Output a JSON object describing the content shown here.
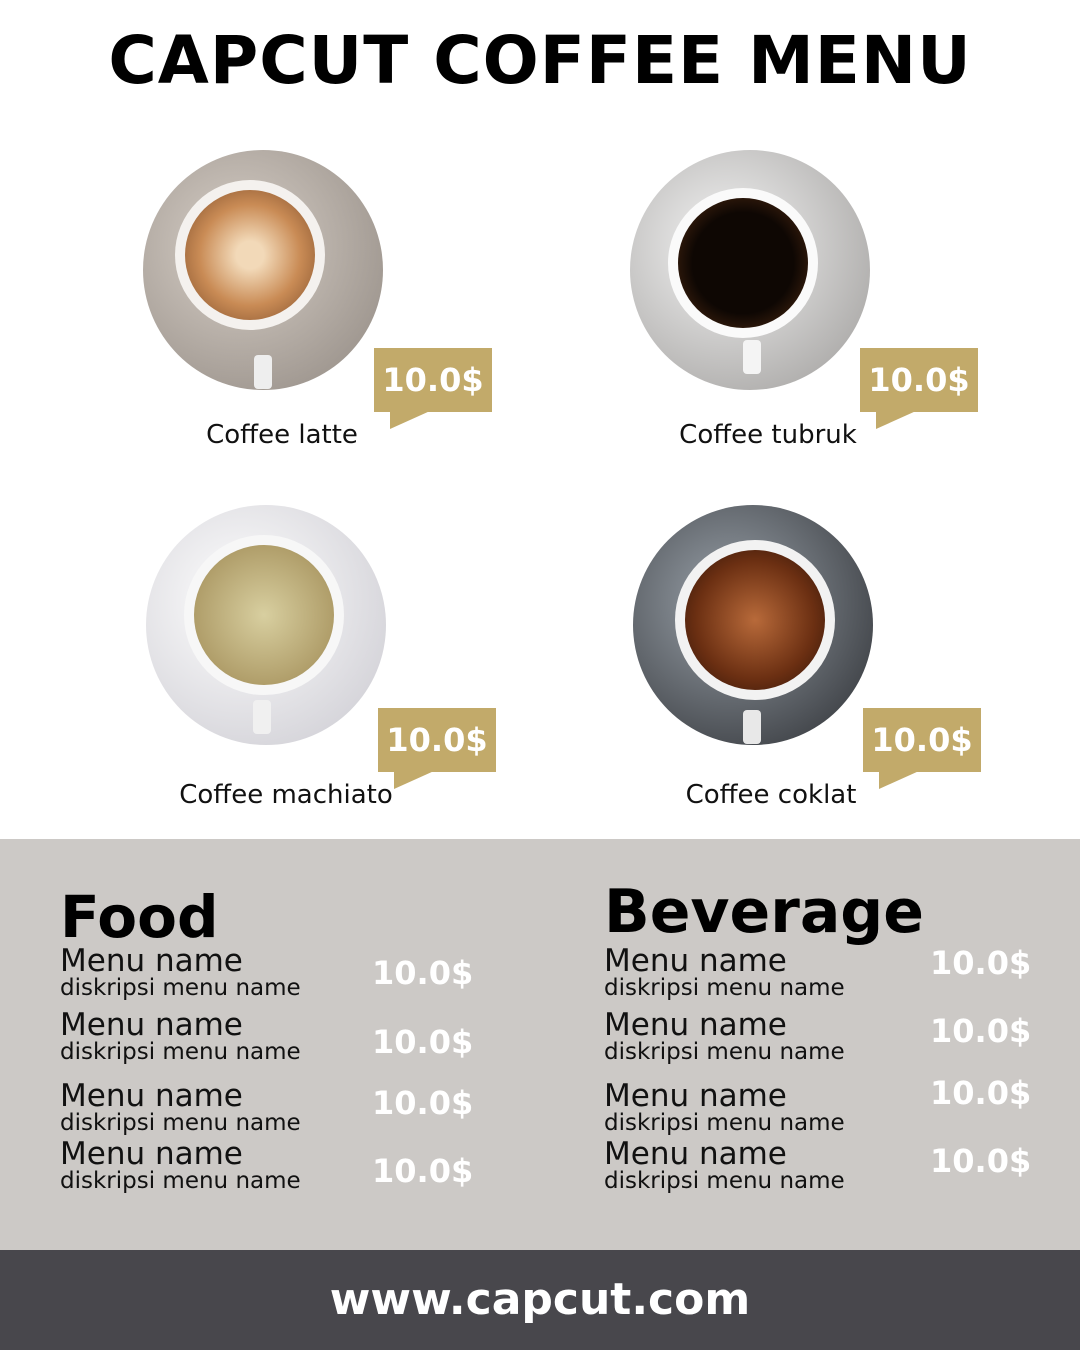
{
  "title": "CAPCUT COFFEE MENU",
  "featured": [
    {
      "name": "Coffee latte",
      "price": "10.0$"
    },
    {
      "name": "Coffee tubruk",
      "price": "10.0$"
    },
    {
      "name": "Coffee machiato",
      "price": "10.0$"
    },
    {
      "name": "Coffee coklat",
      "price": "10.0$"
    }
  ],
  "colors": {
    "accent": "#c2aa6a",
    "band": "#ccc9c6",
    "footer": "#48474c"
  },
  "food": {
    "title": "Food",
    "items": [
      {
        "name": "Menu name",
        "desc": "diskripsi menu name",
        "price": "10.0$"
      },
      {
        "name": "Menu name",
        "desc": "diskripsi menu name",
        "price": "10.0$"
      },
      {
        "name": "Menu name",
        "desc": "diskripsi menu name",
        "price": "10.0$"
      },
      {
        "name": "Menu name",
        "desc": "diskripsi menu name",
        "price": "10.0$"
      }
    ]
  },
  "beverage": {
    "title": "Beverage",
    "items": [
      {
        "name": "Menu name",
        "desc": "diskripsi menu name",
        "price": "10.0$"
      },
      {
        "name": "Menu name",
        "desc": "diskripsi menu name",
        "price": "10.0$"
      },
      {
        "name": "Menu name",
        "desc": "diskripsi menu name",
        "price": "10.0$"
      },
      {
        "name": "Menu name",
        "desc": "diskripsi menu name",
        "price": "10.0$"
      }
    ]
  },
  "footer": {
    "url": "www.capcut.com"
  }
}
